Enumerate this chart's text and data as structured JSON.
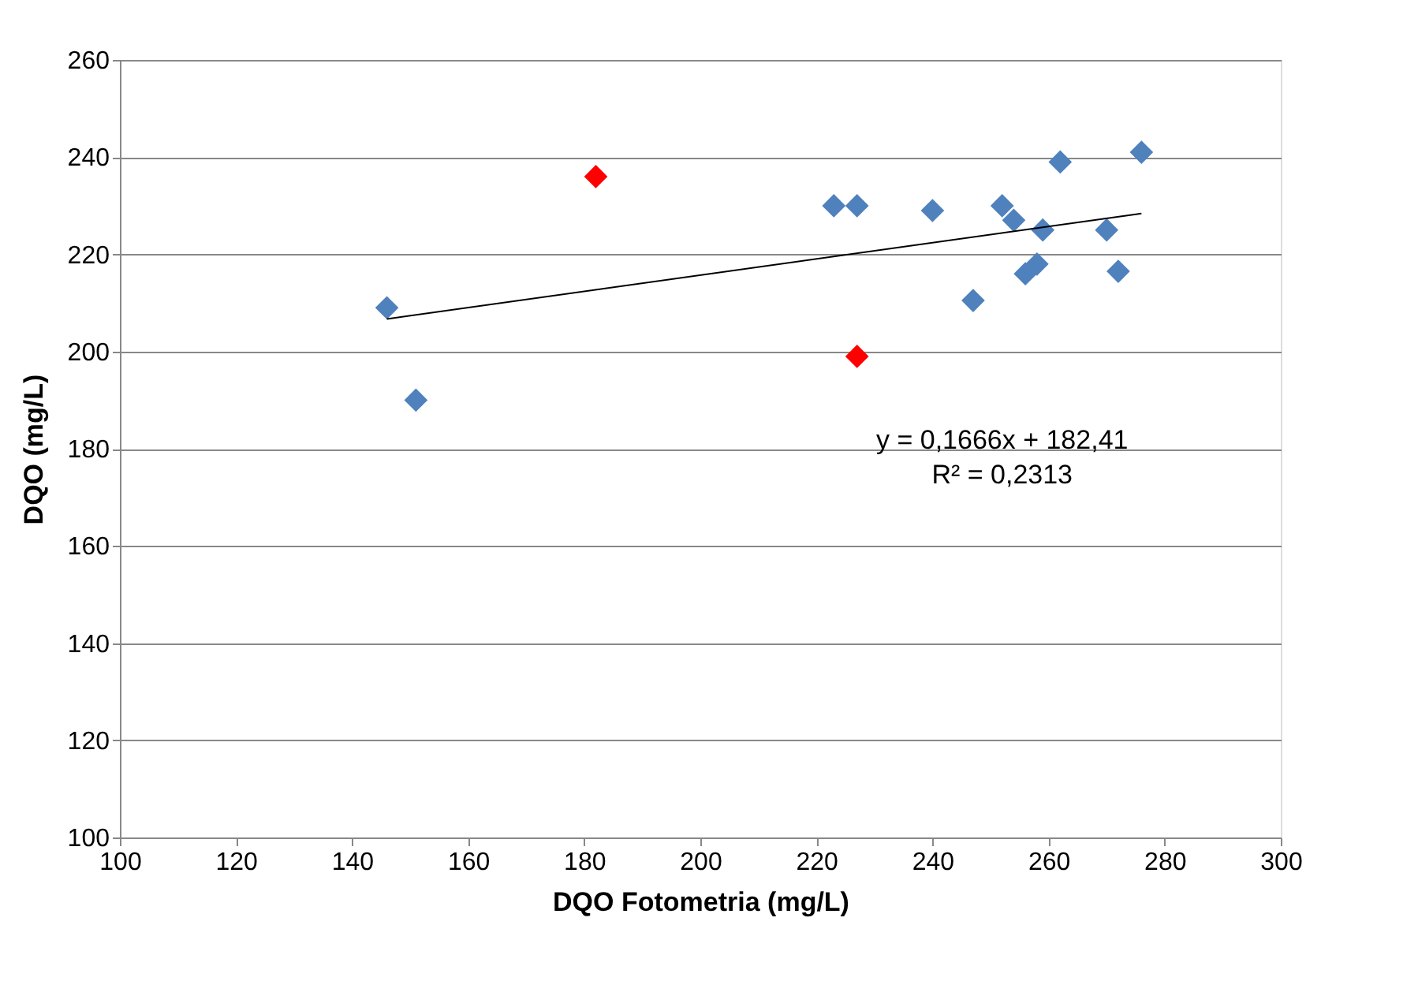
{
  "chart_data": {
    "type": "scatter",
    "xlabel": "DQO Fotometria (mg/L)",
    "ylabel": "DQO (mg/L)",
    "xlim": [
      100,
      300
    ],
    "xticks": [
      100,
      120,
      140,
      160,
      180,
      200,
      220,
      240,
      260,
      280,
      300
    ],
    "ylim": [
      100,
      260
    ],
    "yticks": [
      100,
      120,
      140,
      160,
      180,
      200,
      220,
      240,
      260
    ],
    "grid": "y",
    "marker": "diamond",
    "series": [
      {
        "color": "#4f81bd",
        "x": [
          146,
          151,
          223,
          227,
          240,
          247,
          252,
          254,
          256,
          258,
          259,
          262,
          270,
          272,
          276
        ],
        "values": [
          209,
          190,
          230,
          230,
          229,
          210.5,
          230,
          227,
          216,
          218,
          225,
          239,
          225,
          216.5,
          241
        ]
      },
      {
        "color": "#ff0000",
        "x": [
          182,
          227
        ],
        "values": [
          236,
          199
        ]
      },
      {
        "type": "line",
        "color": "#000000",
        "x": [
          146,
          276
        ],
        "values": [
          206.7,
          228.4
        ],
        "line_style": "solid",
        "marker": "none"
      }
    ],
    "annotations": [
      "y = 0,1666x + 182,41",
      "R² = 0,2313"
    ]
  }
}
